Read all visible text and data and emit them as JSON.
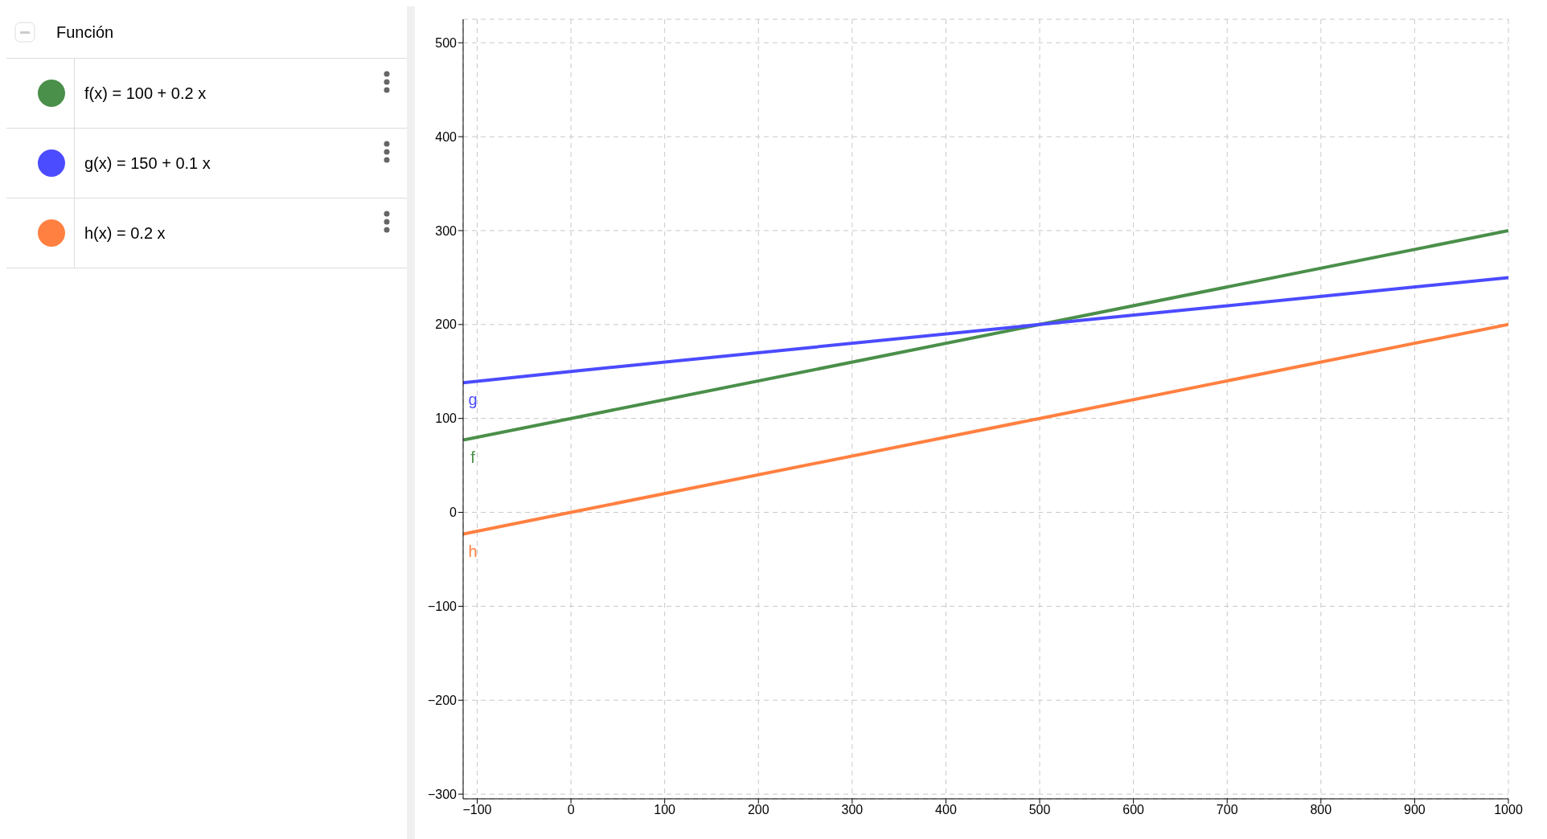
{
  "chart_data": {
    "type": "line",
    "legend": "left",
    "legend_title": "Función",
    "grid": true,
    "marker": "none",
    "line_style": "solid",
    "xlim": [
      -115,
      1000
    ],
    "xticks": [
      {
        "value": -100,
        "label": "−100"
      },
      0,
      100,
      200,
      300,
      400,
      500,
      600,
      700,
      800,
      900,
      1000
    ],
    "ylim": [
      -305,
      525
    ],
    "yticks": [
      {
        "value": -300,
        "label": "−300"
      },
      {
        "value": -200,
        "label": "−200"
      },
      {
        "value": -100,
        "label": "−100"
      },
      0,
      100,
      200,
      300,
      400,
      500
    ],
    "series": [
      {
        "name": "f(x) = 100 + 0.2 x",
        "color": "#4a8f4a",
        "x": [
          -115,
          0,
          500,
          1000
        ],
        "values": [
          77,
          100,
          200,
          300
        ]
      },
      {
        "name": "g(x) = 150 + 0.1 x",
        "color": "#4b4bff",
        "x": [
          -115,
          0,
          500,
          1000
        ],
        "values": [
          138,
          150,
          200,
          250
        ]
      },
      {
        "name": "h(x) = 0.2 x",
        "color": "#ff8040",
        "x": [
          -115,
          0,
          500,
          1000
        ],
        "values": [
          -23,
          0,
          100,
          200
        ]
      }
    ],
    "annotations": [
      "f",
      "g",
      "h"
    ]
  }
}
